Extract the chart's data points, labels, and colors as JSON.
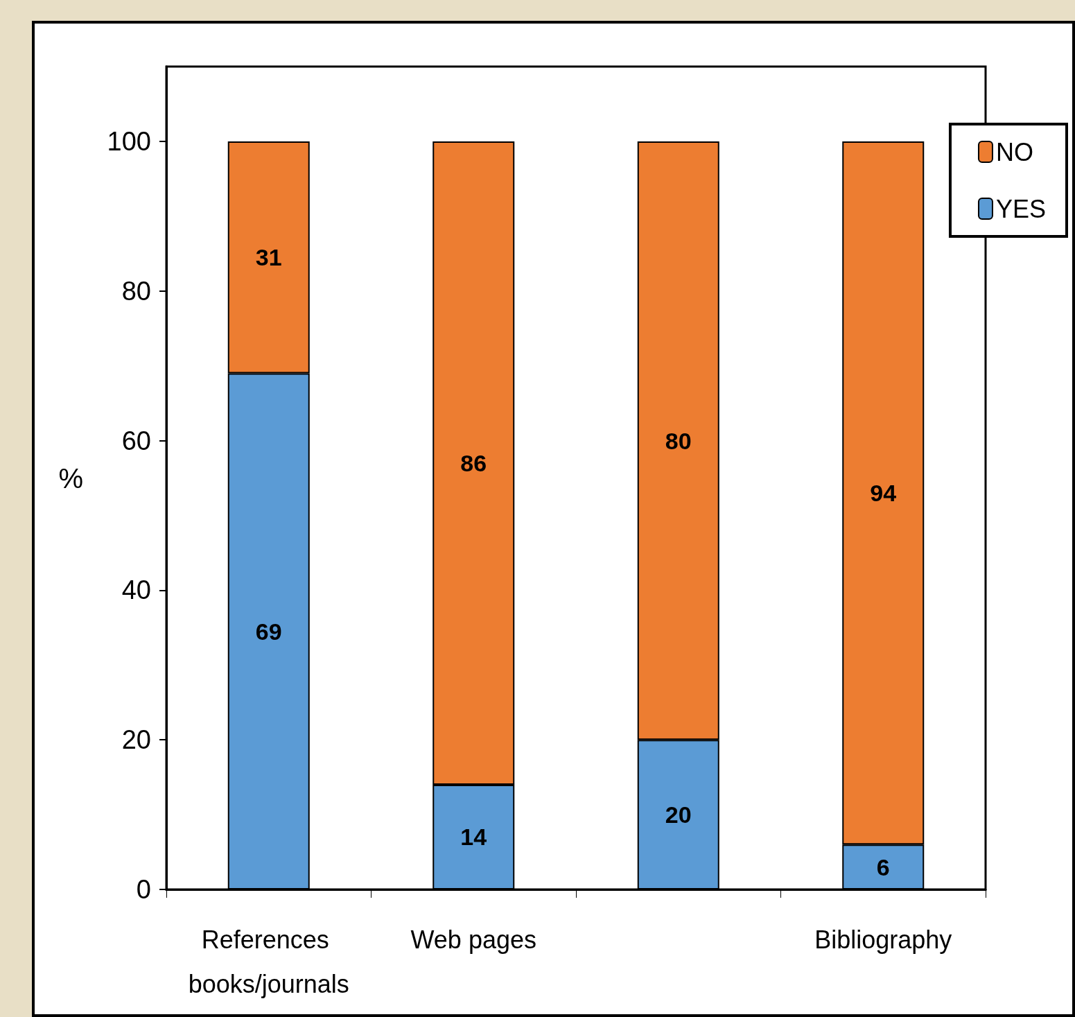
{
  "chart_data": {
    "type": "bar",
    "stacked": true,
    "ylabel": "%",
    "categories": [
      "References books/journals",
      "Web pages",
      null,
      "Bibliography"
    ],
    "series": [
      {
        "name": "YES",
        "color": "#5b9bd5",
        "values": [
          69,
          14,
          20,
          6
        ]
      },
      {
        "name": "NO",
        "color": "#ed7d31",
        "values": [
          31,
          86,
          80,
          94
        ]
      }
    ],
    "ylim": [
      0,
      110
    ],
    "yticks": [
      0,
      20,
      40,
      60,
      80,
      100
    ],
    "grid": false,
    "legend": "top right",
    "data_labels": true
  }
}
